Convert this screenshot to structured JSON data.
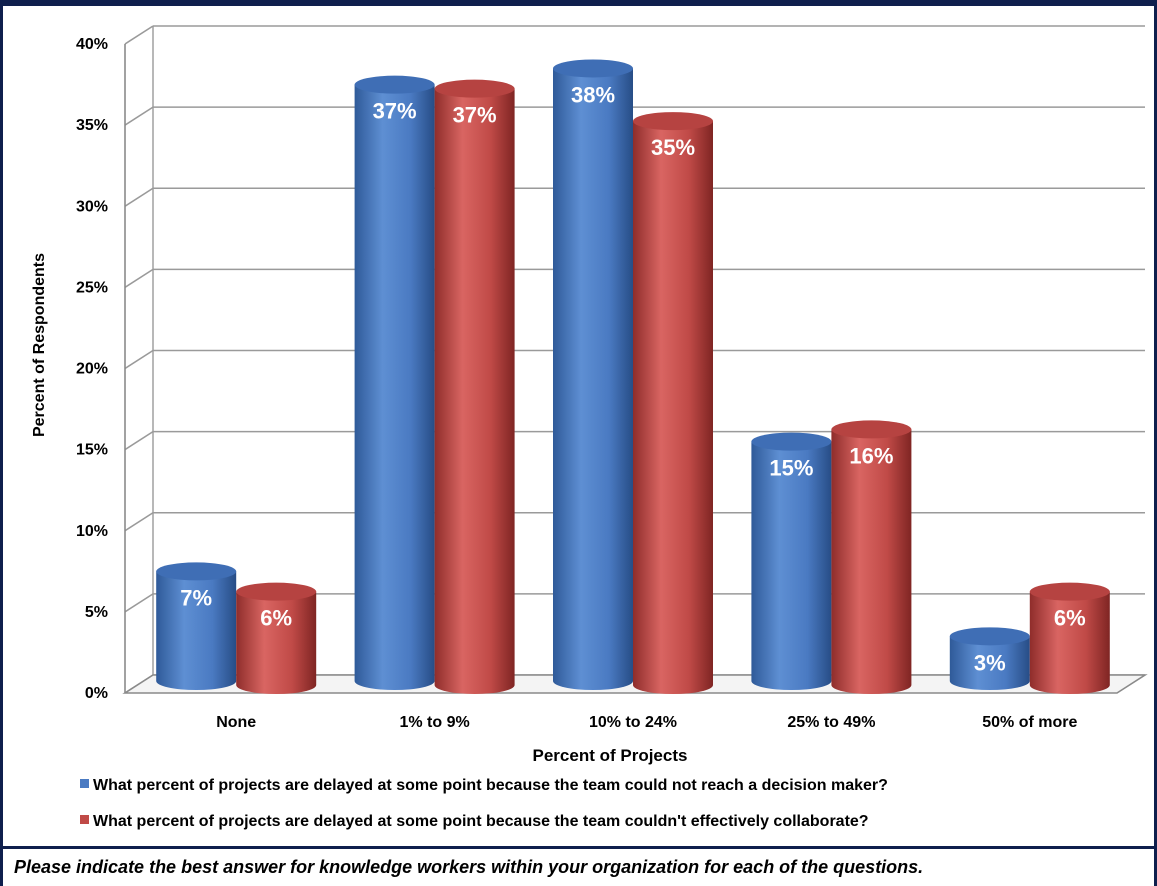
{
  "chart_data": {
    "type": "bar",
    "categories": [
      "None",
      "1% to 9%",
      "10% to 24%",
      "25% to 49%",
      "50% of more"
    ],
    "series": [
      {
        "name": "What percent of projects are delayed at some point because the team could not reach a decision maker?",
        "values": [
          7,
          37,
          38,
          15,
          3
        ],
        "labels": [
          "7%",
          "37%",
          "38%",
          "15%",
          "3%"
        ],
        "color": "#4a7ac2"
      },
      {
        "name": "What percent of projects are delayed at some point because the team couldn't effectively collaborate?",
        "values": [
          6,
          37,
          35,
          16,
          6
        ],
        "labels": [
          "6%",
          "37%",
          "35%",
          "16%",
          "6%"
        ],
        "color": "#c04a47"
      }
    ],
    "xlabel": "Percent of Projects",
    "ylabel": "Percent of Respondents",
    "ylim": [
      0,
      40
    ],
    "yticks": [
      "0%",
      "5%",
      "10%",
      "15%",
      "20%",
      "25%",
      "30%",
      "35%",
      "40%"
    ],
    "grid": true,
    "legend": "bottom"
  },
  "footer_note": "Please indicate the best answer for knowledge workers within your organization for each of the questions."
}
